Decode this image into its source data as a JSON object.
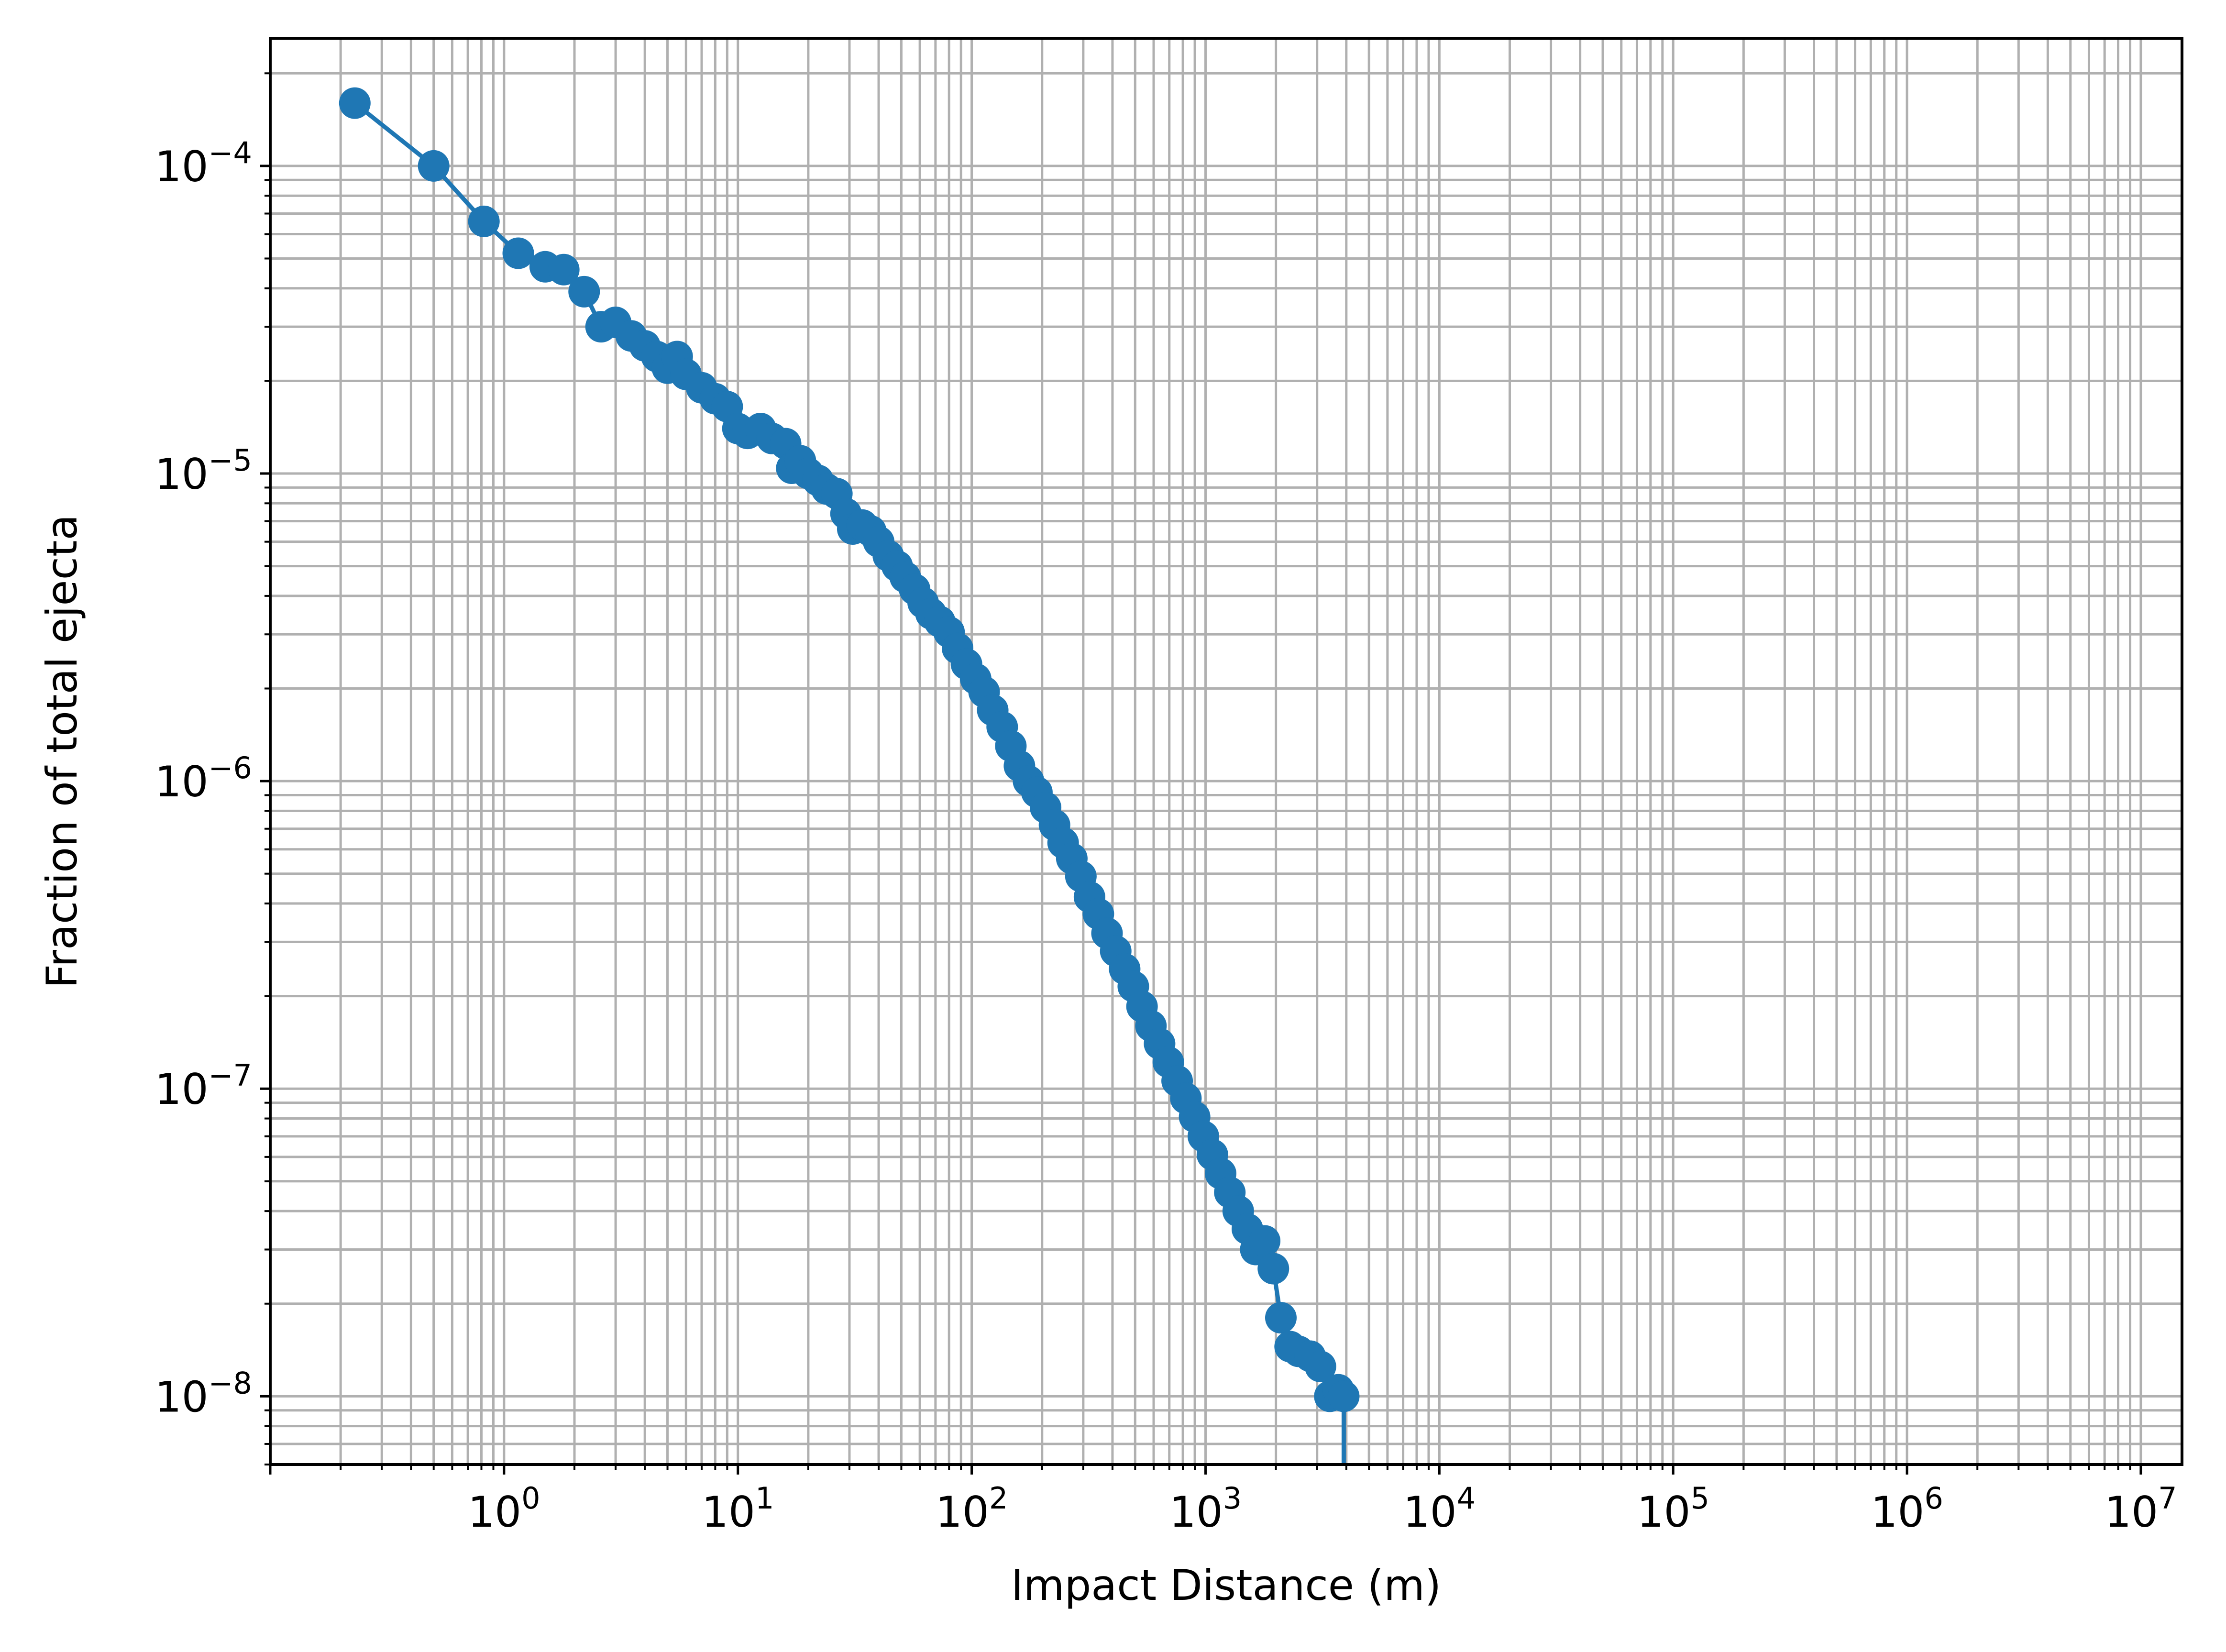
{
  "chart_data": {
    "type": "line",
    "title": "",
    "xlabel": "Impact Distance (m)",
    "ylabel": "Fraction of total ejecta",
    "xscale": "log",
    "yscale": "log",
    "xlim": [
      0.1,
      15000000
    ],
    "ylim": [
      6e-09,
      0.00026
    ],
    "grid": "on (major and minor)",
    "legend": "none",
    "marker": "circle",
    "colors": {
      "series": "#1f77b4",
      "grid": "#b0b0b0",
      "axes": "#000000",
      "background": "#ffffff"
    },
    "xticks": [
      {
        "value": 1,
        "base": "10",
        "exp": "0"
      },
      {
        "value": 10,
        "base": "10",
        "exp": "1"
      },
      {
        "value": 100,
        "base": "10",
        "exp": "2"
      },
      {
        "value": 1000,
        "base": "10",
        "exp": "3"
      },
      {
        "value": 10000,
        "base": "10",
        "exp": "4"
      },
      {
        "value": 100000,
        "base": "10",
        "exp": "5"
      },
      {
        "value": 1000000,
        "base": "10",
        "exp": "6"
      },
      {
        "value": 10000000,
        "base": "10",
        "exp": "7"
      }
    ],
    "yticks": [
      {
        "value": 1e-08,
        "base": "10",
        "exp": "−8"
      },
      {
        "value": 1e-07,
        "base": "10",
        "exp": "−7"
      },
      {
        "value": 1e-06,
        "base": "10",
        "exp": "−6"
      },
      {
        "value": 1e-05,
        "base": "10",
        "exp": "−5"
      },
      {
        "value": 0.0001,
        "base": "10",
        "exp": "−4"
      }
    ],
    "series": [
      {
        "x": [
          0.23,
          0.5,
          0.82,
          1.15,
          1.5,
          1.8,
          2.2,
          2.6,
          3.0,
          3.5,
          4.0,
          4.5,
          5.0,
          5.5,
          6.0,
          7.0,
          8.0,
          9.0,
          10.0,
          11.0,
          12.5,
          14.0,
          16.0,
          17.0,
          18.5,
          20.0,
          22.0,
          24.0,
          26.5,
          29.0,
          31.0,
          34.0,
          37.0,
          40.0,
          44.0,
          48.0,
          52.0,
          57.0,
          62.0,
          67.0,
          73.0,
          80.0,
          87.0,
          95.0,
          104.0,
          113.0,
          123.0,
          135.0,
          147.0,
          160.0,
          175.0,
          190.0,
          207.0,
          226.0,
          246.0,
          268.0,
          293.0,
          319.0,
          348.0,
          379.0,
          413.0,
          451.0,
          491.0,
          535.0,
          584.0,
          636.0,
          693.0,
          756.0,
          824.0,
          898.0,
          979.0,
          1070.0,
          1160.0,
          1270.0,
          1380.0,
          1510.0,
          1640.0,
          1790.0,
          1950.0,
          2100.0,
          2300.0,
          2500.0,
          2800.0,
          3100.0,
          3400.0,
          3700.0,
          3900.0
        ],
        "y": [
          0.00016,
          0.0001,
          6.6e-05,
          5.2e-05,
          4.7e-05,
          4.6e-05,
          3.9e-05,
          3e-05,
          3.1e-05,
          2.8e-05,
          2.6e-05,
          2.4e-05,
          2.2e-05,
          2.4e-05,
          2.1e-05,
          1.9e-05,
          1.75e-05,
          1.65e-05,
          1.4e-05,
          1.35e-05,
          1.4e-05,
          1.3e-05,
          1.25e-05,
          1.04e-05,
          1.1e-05,
          1e-05,
          9.5e-06,
          8.9e-06,
          8.6e-06,
          7.4e-06,
          6.6e-06,
          6.8e-06,
          6.5e-06,
          6e-06,
          5.4e-06,
          5e-06,
          4.6e-06,
          4.2e-06,
          3.8e-06,
          3.5e-06,
          3.3e-06,
          3.05e-06,
          2.7e-06,
          2.4e-06,
          2.15e-06,
          1.95e-06,
          1.7e-06,
          1.5e-06,
          1.3e-06,
          1.12e-06,
          1e-06,
          9.2e-07,
          8.2e-07,
          7.2e-07,
          6.3e-07,
          5.6e-07,
          4.9e-07,
          4.2e-07,
          3.7e-07,
          3.2e-07,
          2.8e-07,
          2.45e-07,
          2.15e-07,
          1.85e-07,
          1.6e-07,
          1.4e-07,
          1.22e-07,
          1.06e-07,
          9.3e-08,
          8.1e-08,
          7e-08,
          6.1e-08,
          5.3e-08,
          4.6e-08,
          4e-08,
          3.5e-08,
          3e-08,
          3.2e-08,
          2.6e-08,
          1.8e-08,
          1.45e-08,
          1.4e-08,
          1.35e-08,
          1.25e-08,
          1e-08,
          1.05e-08,
          1e-08
        ]
      }
    ]
  }
}
